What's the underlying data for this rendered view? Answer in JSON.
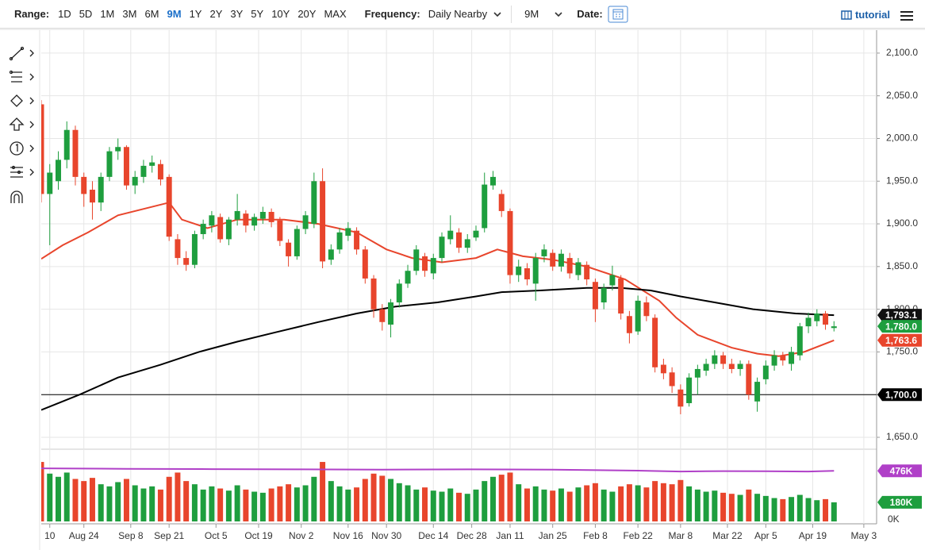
{
  "toolbar": {
    "range_label": "Range:",
    "ranges": [
      "1D",
      "5D",
      "1M",
      "3M",
      "6M",
      "9M",
      "1Y",
      "2Y",
      "3Y",
      "5Y",
      "10Y",
      "20Y",
      "MAX"
    ],
    "active_range": "9M",
    "frequency_label": "Frequency:",
    "frequency": "Daily Nearby",
    "period": "9M",
    "date_label": "Date:",
    "tutorial": "tutorial"
  },
  "chart_data": {
    "type": "candlestick",
    "x": [
      0,
      2,
      4,
      6,
      8,
      10,
      12,
      14,
      16,
      18,
      20,
      22,
      24,
      26,
      28,
      30,
      32,
      34,
      36,
      38,
      40,
      42,
      44,
      46,
      48,
      50,
      52,
      54,
      56,
      58,
      60,
      62,
      64,
      66,
      68,
      70,
      72,
      74,
      76,
      78,
      80,
      82,
      84,
      86,
      88,
      90,
      92,
      94,
      96,
      98,
      100,
      102,
      104,
      106,
      108,
      110,
      112,
      114,
      116,
      118,
      120,
      122,
      124,
      126,
      128,
      130,
      132,
      134,
      136,
      138,
      140,
      142,
      144,
      146,
      148,
      150,
      152,
      154,
      156,
      158,
      160,
      162,
      164,
      166,
      168,
      170,
      172,
      174,
      176,
      178,
      180,
      182,
      184,
      186
    ],
    "open": [
      2040,
      1935,
      1950,
      1975,
      2010,
      1955,
      1940,
      1925,
      1955,
      1985,
      1990,
      1945,
      1955,
      1968,
      1970,
      1955,
      1882,
      1860,
      1852,
      1888,
      1898,
      1908,
      1882,
      1905,
      1912,
      1898,
      1906,
      1914,
      1904,
      1878,
      1862,
      1894,
      1900,
      1950,
      1858,
      1870,
      1886,
      1892,
      1870,
      1836,
      1800,
      1782,
      1808,
      1830,
      1845,
      1862,
      1842,
      1860,
      1882,
      1890,
      1872,
      1884,
      1895,
      1945,
      1935,
      1915,
      1840,
      1848,
      1830,
      1862,
      1866,
      1850,
      1860,
      1840,
      1852,
      1832,
      1808,
      1828,
      1836,
      1792,
      1774,
      1808,
      1790,
      1735,
      1726,
      1706,
      1690,
      1720,
      1728,
      1736,
      1746,
      1736,
      1730,
      1736,
      1692,
      1718,
      1734,
      1746,
      1736,
      1746,
      1780,
      1786,
      1795,
      1778
    ],
    "high": [
      2045,
      1970,
      1985,
      2020,
      2015,
      1960,
      1950,
      1960,
      1990,
      2000,
      1992,
      1962,
      1975,
      1980,
      1975,
      1958,
      1888,
      1868,
      1892,
      1905,
      1915,
      1912,
      1908,
      1935,
      1916,
      1912,
      1920,
      1918,
      1908,
      1882,
      1898,
      1915,
      1960,
      1965,
      1876,
      1895,
      1902,
      1896,
      1874,
      1840,
      1806,
      1812,
      1835,
      1852,
      1875,
      1866,
      1865,
      1890,
      1910,
      1895,
      1888,
      1898,
      1960,
      1962,
      1940,
      1918,
      1858,
      1854,
      1866,
      1876,
      1870,
      1870,
      1866,
      1860,
      1856,
      1836,
      1830,
      1851,
      1840,
      1798,
      1816,
      1815,
      1794,
      1742,
      1732,
      1712,
      1725,
      1735,
      1742,
      1752,
      1750,
      1742,
      1740,
      1740,
      1720,
      1740,
      1752,
      1750,
      1756,
      1784,
      1796,
      1800,
      1798,
      1786
    ],
    "low": [
      1925,
      1875,
      1940,
      1965,
      1945,
      1920,
      1905,
      1915,
      1950,
      1975,
      1940,
      1935,
      1948,
      1960,
      1945,
      1880,
      1852,
      1845,
      1848,
      1882,
      1890,
      1878,
      1875,
      1898,
      1890,
      1892,
      1900,
      1896,
      1874,
      1850,
      1858,
      1888,
      1895,
      1848,
      1852,
      1865,
      1880,
      1864,
      1830,
      1790,
      1775,
      1767,
      1802,
      1825,
      1840,
      1838,
      1835,
      1855,
      1876,
      1866,
      1866,
      1880,
      1890,
      1940,
      1908,
      1830,
      1832,
      1828,
      1810,
      1855,
      1845,
      1844,
      1836,
      1834,
      1828,
      1785,
      1800,
      1822,
      1788,
      1760,
      1770,
      1786,
      1726,
      1718,
      1702,
      1677,
      1686,
      1700,
      1722,
      1730,
      1730,
      1725,
      1722,
      1694,
      1680,
      1712,
      1728,
      1734,
      1728,
      1740,
      1772,
      1780,
      1776,
      1774
    ],
    "close": [
      1935,
      1960,
      1975,
      2010,
      1955,
      1935,
      1925,
      1955,
      1985,
      1990,
      1945,
      1955,
      1968,
      1972,
      1952,
      1885,
      1860,
      1852,
      1888,
      1900,
      1910,
      1882,
      1905,
      1915,
      1898,
      1908,
      1914,
      1902,
      1880,
      1862,
      1894,
      1910,
      1950,
      1856,
      1870,
      1890,
      1895,
      1870,
      1836,
      1800,
      1785,
      1808,
      1830,
      1845,
      1870,
      1845,
      1860,
      1885,
      1892,
      1872,
      1882,
      1892,
      1946,
      1955,
      1915,
      1840,
      1850,
      1835,
      1860,
      1870,
      1850,
      1865,
      1842,
      1855,
      1835,
      1800,
      1825,
      1840,
      1795,
      1772,
      1810,
      1792,
      1732,
      1725,
      1710,
      1686,
      1720,
      1730,
      1736,
      1746,
      1736,
      1730,
      1736,
      1700,
      1715,
      1734,
      1746,
      1740,
      1750,
      1780,
      1790,
      1795,
      1782,
      1780
    ],
    "up_color": "#1e9e3e",
    "down_color": "#e8452c",
    "xlim": [
      0,
      196
    ],
    "xticks": [
      {
        "value": 2,
        "label": "10"
      },
      {
        "value": 10,
        "label": "Aug 24"
      },
      {
        "value": 21,
        "label": "Sep 8"
      },
      {
        "value": 30,
        "label": "Sep 21"
      },
      {
        "value": 41,
        "label": "Oct 5"
      },
      {
        "value": 51,
        "label": "Oct 19"
      },
      {
        "value": 61,
        "label": "Nov 2"
      },
      {
        "value": 72,
        "label": "Nov 16"
      },
      {
        "value": 81,
        "label": "Nov 30"
      },
      {
        "value": 92,
        "label": "Dec 14"
      },
      {
        "value": 101,
        "label": "Dec 28"
      },
      {
        "value": 110,
        "label": "Jan 11"
      },
      {
        "value": 120,
        "label": "Jan 25"
      },
      {
        "value": 130,
        "label": "Feb 8"
      },
      {
        "value": 140,
        "label": "Feb 22"
      },
      {
        "value": 150,
        "label": "Mar 8"
      },
      {
        "value": 161,
        "label": "Mar 22"
      },
      {
        "value": 170,
        "label": "Apr 5"
      },
      {
        "value": 181,
        "label": "Apr 19"
      },
      {
        "value": 193,
        "label": "May 3"
      }
    ],
    "ylim": [
      1637,
      2125
    ],
    "yticks": [
      {
        "value": 1650,
        "label": "1,650.0"
      },
      {
        "value": 1700,
        "label": "1,700.0"
      },
      {
        "value": 1750,
        "label": "1,750.0"
      },
      {
        "value": 1800,
        "label": "1,800.0"
      },
      {
        "value": 1850,
        "label": "1,850.0"
      },
      {
        "value": 1900,
        "label": "1,900.0"
      },
      {
        "value": 1950,
        "label": "1,950.0"
      },
      {
        "value": 2000,
        "label": "2,000.0"
      },
      {
        "value": 2050,
        "label": "2,050.0"
      },
      {
        "value": 2100,
        "label": "2,100.0"
      }
    ],
    "grid": true,
    "lines": [
      {
        "color": "#e8452c",
        "x": [
          0,
          5,
          11,
          18,
          30,
          33,
          39,
          46,
          57,
          65,
          74,
          81,
          87,
          94,
          102,
          107,
          113,
          120,
          128,
          137,
          145,
          149,
          154,
          162,
          168,
          173,
          179,
          186
        ],
        "values": [
          1859,
          1875,
          1890,
          1910,
          1925,
          1905,
          1895,
          1905,
          1905,
          1900,
          1890,
          1870,
          1860,
          1855,
          1860,
          1870,
          1862,
          1858,
          1850,
          1835,
          1810,
          1790,
          1770,
          1755,
          1748,
          1745,
          1750,
          1763.6
        ]
      },
      {
        "color": "#000000",
        "x": [
          0,
          9,
          18,
          28,
          37,
          46,
          55,
          65,
          74,
          83,
          93,
          102,
          108,
          117,
          128,
          136,
          143,
          150,
          158,
          167,
          177,
          186
        ],
        "values": [
          1682,
          1700,
          1720,
          1735,
          1750,
          1762,
          1773,
          1785,
          1795,
          1803,
          1808,
          1815,
          1820,
          1822,
          1825,
          1825,
          1822,
          1815,
          1808,
          1800,
          1795,
          1793.1
        ]
      }
    ],
    "hline": {
      "value": 1700,
      "label": "1,700.0",
      "color": "#000000"
    },
    "price_flags": [
      {
        "value": 1793.1,
        "label": "1,793.1",
        "color": "#111111"
      },
      {
        "value": 1780.0,
        "label": "1,780.0",
        "color": "#1e9e3e"
      },
      {
        "value": 1763.6,
        "label": "1,763.6",
        "color": "#e8452c"
      }
    ],
    "volume": {
      "values": [
        560000,
        450000,
        420000,
        460000,
        400000,
        380000,
        410000,
        350000,
        330000,
        370000,
        400000,
        340000,
        310000,
        330000,
        300000,
        420000,
        460000,
        380000,
        350000,
        300000,
        330000,
        310000,
        290000,
        340000,
        300000,
        280000,
        270000,
        310000,
        330000,
        350000,
        320000,
        340000,
        420000,
        560000,
        380000,
        330000,
        300000,
        320000,
        400000,
        450000,
        430000,
        400000,
        360000,
        340000,
        300000,
        320000,
        290000,
        280000,
        310000,
        270000,
        260000,
        300000,
        380000,
        420000,
        440000,
        460000,
        350000,
        310000,
        330000,
        300000,
        290000,
        310000,
        280000,
        320000,
        340000,
        360000,
        300000,
        280000,
        330000,
        350000,
        340000,
        320000,
        380000,
        360000,
        350000,
        390000,
        330000,
        300000,
        280000,
        290000,
        270000,
        260000,
        250000,
        300000,
        260000,
        240000,
        220000,
        210000,
        230000,
        250000,
        220000,
        200000,
        210000,
        180000
      ],
      "vlim": [
        0,
        650000
      ],
      "vticks": [
        {
          "value": 0,
          "label": "0K"
        }
      ],
      "ma": {
        "color": "#b040c8",
        "x": [
          0,
          20,
          40,
          60,
          80,
          100,
          120,
          140,
          150,
          160,
          170,
          180,
          186
        ],
        "values": [
          500000,
          495000,
          492000,
          490000,
          488000,
          490000,
          488000,
          478000,
          470000,
          474000,
          472000,
          470000,
          476000
        ]
      },
      "flags": [
        {
          "value": 476000,
          "label": "476K",
          "color": "#b040c8"
        },
        {
          "value": 180000,
          "label": "180K",
          "color": "#1e9e3e"
        }
      ]
    }
  }
}
